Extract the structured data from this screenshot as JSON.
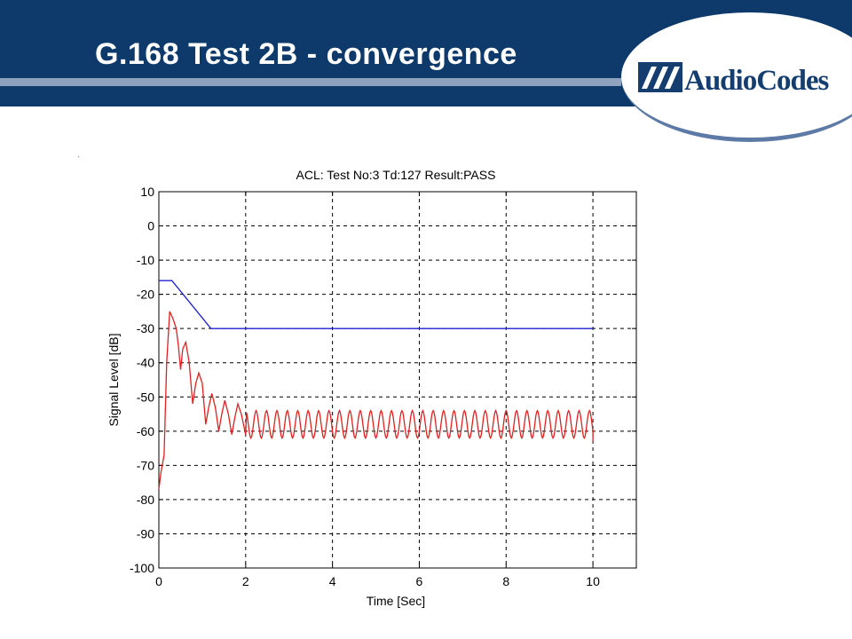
{
  "slide": {
    "title": "G.168 Test 2B - convergence",
    "logo_text": "AudioCodes",
    "colors": {
      "header_bg": "#0e3a6b",
      "header_rule": "#8ea2bd",
      "logo_text": "#153d6f"
    }
  },
  "chart_data": {
    "type": "line",
    "title": "ACL: Test No:3   Td:127   Result:PASS",
    "xlabel": "Time [Sec]",
    "ylabel": "Signal Level [dB]",
    "xlim": [
      0,
      11
    ],
    "ylim": [
      -100,
      10
    ],
    "xticks": [
      0,
      2,
      4,
      6,
      8,
      10
    ],
    "yticks": [
      10,
      0,
      -10,
      -20,
      -30,
      -40,
      -50,
      -60,
      -70,
      -80,
      -90,
      -100
    ],
    "grid": true,
    "grid_style": "dashed",
    "series": [
      {
        "color": "#2020d0",
        "x": [
          0,
          0.3,
          1.2,
          10
        ],
        "y": [
          -16,
          -16,
          -30,
          -30
        ]
      },
      {
        "color": "#e02020",
        "x": [
          0,
          0.05,
          0.12,
          0.18,
          0.25,
          0.32,
          0.4,
          0.45,
          0.5,
          0.55,
          0.62,
          0.7,
          0.78,
          0.85,
          0.92,
          1.0,
          1.08,
          1.15,
          1.22,
          1.3,
          1.38,
          1.45,
          1.52,
          1.6,
          1.68,
          1.75,
          1.82,
          1.9,
          2.0
        ],
        "y": [
          -77,
          -72,
          -67,
          -40,
          -25,
          -27,
          -30,
          -35,
          -42,
          -36,
          -34,
          -40,
          -52,
          -46,
          -43,
          -46,
          -58,
          -53,
          -49,
          -53,
          -60,
          -55,
          -51,
          -55,
          -61,
          -56,
          -52,
          -55,
          -61
        ],
        "oscillation": {
          "from": 2.0,
          "to": 10,
          "period": 0.24,
          "max": -54,
          "min": -62,
          "end_value": -63
        }
      }
    ]
  }
}
